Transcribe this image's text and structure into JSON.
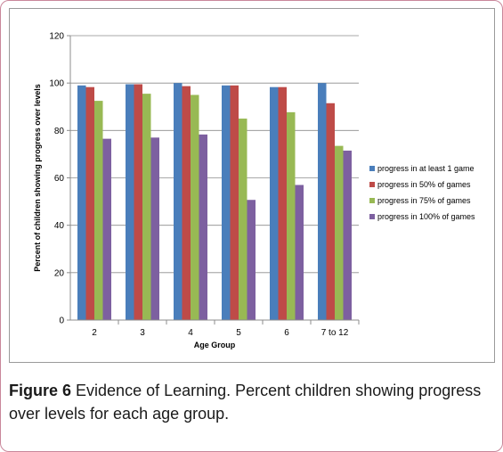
{
  "caption": {
    "label": "Figure 6",
    "text": "Evidence of Learning. Percent children showing progress over levels for each age group."
  },
  "chart_data": {
    "type": "bar",
    "xlabel": "Age Group",
    "ylabel": "Percent of children showing progress over levels",
    "ylim": [
      0,
      120
    ],
    "yticks": [
      0,
      20,
      40,
      60,
      80,
      100,
      120
    ],
    "grid": true,
    "legend_position": "right",
    "categories": [
      "2",
      "3",
      "4",
      "5",
      "6",
      "7 to 12"
    ],
    "series": [
      {
        "name": "progress in at least 1 game",
        "color": "#4a7ebb",
        "values": [
          99,
          99.5,
          100,
          99,
          98.3,
          100
        ]
      },
      {
        "name": "progress in 50% of games",
        "color": "#be4b48",
        "values": [
          98.3,
          99.5,
          98.7,
          99,
          98.3,
          91.5
        ]
      },
      {
        "name": "progress in 75% of games",
        "color": "#98b954",
        "values": [
          92.5,
          95.5,
          95,
          85,
          87.7,
          73.5
        ]
      },
      {
        "name": "progress in 100% of games",
        "color": "#7d60a0",
        "values": [
          76.5,
          77,
          78.3,
          50.7,
          57,
          71.5
        ]
      }
    ]
  }
}
